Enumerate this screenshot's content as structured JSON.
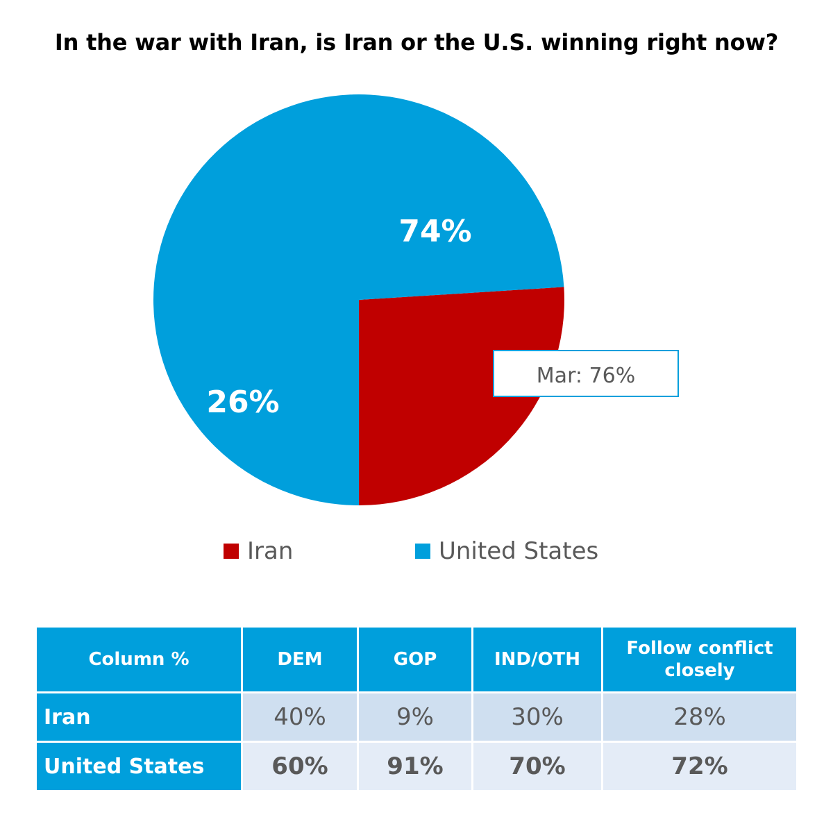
{
  "chart_data": {
    "type": "pie",
    "title": "In the war with Iran, is Iran or the U.S. winning right now?",
    "slices": [
      {
        "name": "Iran",
        "value": 26,
        "label": "26%",
        "color": "#c00000"
      },
      {
        "name": "United States",
        "value": 74,
        "label": "74%",
        "color": "#009fdc"
      }
    ],
    "annotation": {
      "text": "Mar: 76%"
    },
    "legend": {
      "position": "bottom",
      "items": [
        "Iran",
        "United States"
      ]
    }
  },
  "table": {
    "columns": [
      "Column %",
      "DEM",
      "GOP",
      "IND/OTH",
      "Follow conflict closely"
    ],
    "rows": [
      {
        "label": "Iran",
        "values": [
          "40%",
          "9%",
          "30%",
          "28%"
        ]
      },
      {
        "label": "United States",
        "values": [
          "60%",
          "91%",
          "70%",
          "72%"
        ]
      }
    ]
  },
  "colors": {
    "iran": "#c00000",
    "us": "#009fdc",
    "header_bg": "#009fdc",
    "iran_row_bg": "#cfdff0",
    "us_row_bg": "#e4ecf7"
  }
}
